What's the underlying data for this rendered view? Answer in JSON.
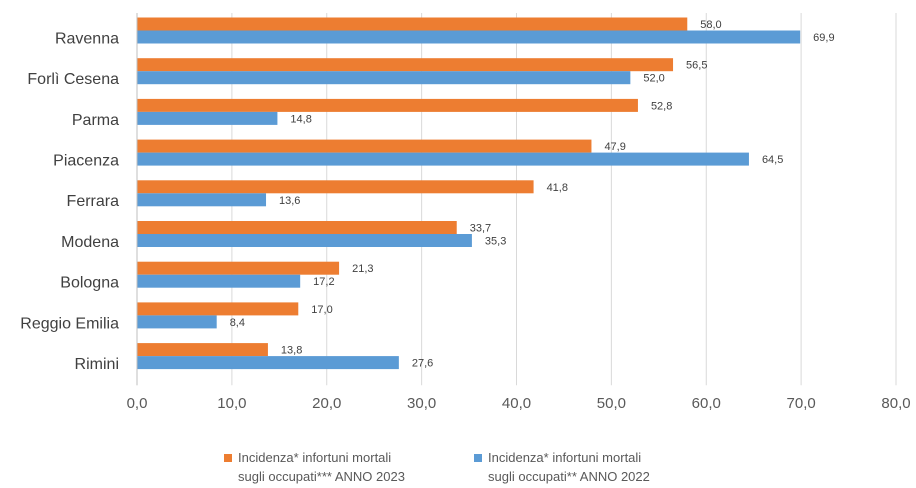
{
  "chart_data": {
    "type": "bar",
    "orientation": "horizontal",
    "categories": [
      "Ravenna",
      "Forlì Cesena",
      "Parma",
      "Piacenza",
      "Ferrara",
      "Modena",
      "Bologna",
      "Reggio Emilia",
      "Rimini"
    ],
    "series": [
      {
        "name": "Incidenza* infortuni mortali\nsugli occupati*** ANNO 2023",
        "color": "#ED7D31",
        "values": [
          58.0,
          56.5,
          52.8,
          47.9,
          41.8,
          33.7,
          21.3,
          17.0,
          13.8
        ],
        "labels": [
          "58,0",
          "56,5",
          "52,8",
          "47,9",
          "41,8",
          "33,7",
          "21,3",
          "17,0",
          "13,8"
        ]
      },
      {
        "name": "Incidenza* infortuni mortali\nsugli occupati** ANNO 2022",
        "color": "#5B9BD5",
        "values": [
          69.9,
          52.0,
          14.8,
          64.5,
          13.6,
          35.3,
          17.2,
          8.4,
          27.6
        ],
        "labels": [
          "69,9",
          "52,0",
          "14,8",
          "64,5",
          "13,6",
          "35,3",
          "17,2",
          "8,4",
          "27,6"
        ]
      }
    ],
    "x_ticks": [
      "0,0",
      "10,0",
      "20,0",
      "30,0",
      "40,0",
      "50,0",
      "60,0",
      "70,0",
      "80,0"
    ],
    "xlim": [
      0,
      80
    ],
    "grid": true,
    "legend_position": "bottom"
  }
}
